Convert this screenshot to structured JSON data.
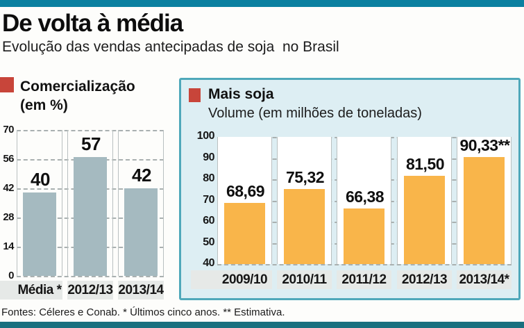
{
  "page": {
    "title": "De volta à média",
    "subtitle": "Evolução das vendas antecipadas de soja  no Brasil",
    "footnote": "Fontes: Céleres e Conab. * Últimos cinco anos. ** Estimativa."
  },
  "colors": {
    "top_bar": "#0b80a0",
    "bottom_bar": "#19707f",
    "legend_marker": "#c8453a",
    "panel_border": "#4fa8ba",
    "panel_bg": "#ddeef3",
    "axis_band": "#e6e9e7",
    "left_bar": "#a5bac0",
    "right_bar": "#f9b54a"
  },
  "chart_data": [
    {
      "id": "comercializacao",
      "type": "bar",
      "title": "Comercialização",
      "subtitle": "(em %)",
      "categories": [
        "Média *",
        "2012/13",
        "2013/14"
      ],
      "values": [
        40,
        57,
        42
      ],
      "value_labels": [
        "40",
        "57",
        "42"
      ],
      "ylim": [
        0,
        70
      ],
      "yticks": [
        70,
        56,
        42,
        28,
        14,
        0
      ],
      "grid": "horizontal-dashed",
      "legend_position": "top-left",
      "bar_color": "#a5bac0"
    },
    {
      "id": "mais_soja",
      "type": "bar",
      "title": "Mais soja",
      "subtitle": "Volume (em milhões de toneladas)",
      "categories": [
        "2009/10",
        "2010/11",
        "2011/12",
        "2012/13",
        "2013/14*"
      ],
      "values": [
        68.69,
        75.32,
        66.38,
        81.5,
        90.33
      ],
      "value_labels": [
        "68,69",
        "75,32",
        "66,38",
        "81,50",
        "90,33**"
      ],
      "ylim": [
        40,
        100
      ],
      "yticks": [
        100,
        90,
        80,
        70,
        60,
        50,
        40
      ],
      "grid": "horizontal-dashed",
      "legend_position": "top-left",
      "bar_color": "#f9b54a"
    }
  ]
}
